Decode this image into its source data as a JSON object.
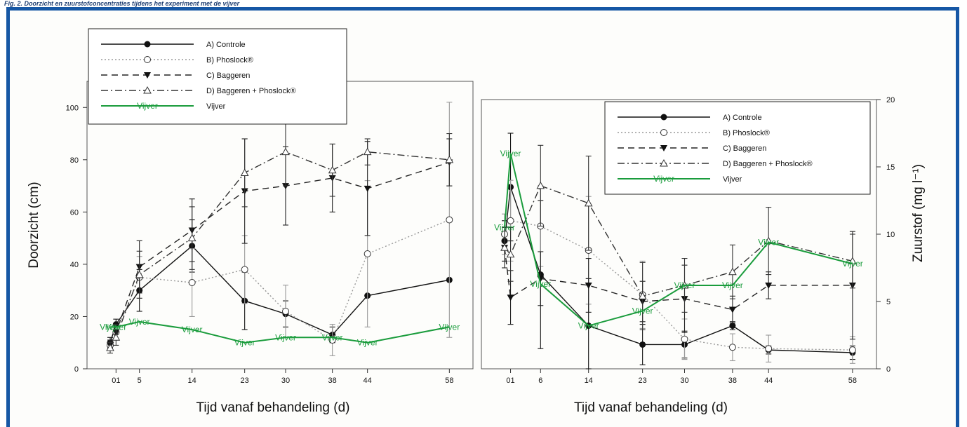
{
  "caption": "Fig. 2. Doorzicht en zuurstofconcentraties tijdens het experiment met de vijver",
  "colors": {
    "frame": "#1657a5",
    "vijver": "#1a9c3c",
    "series_black": "#111111",
    "series_dotted": "#999999",
    "series_dashed": "#222222",
    "series_dashdot": "#333333"
  },
  "chart_data": [
    {
      "type": "line",
      "xlabel": "Tijd vanaf behandeling (d)",
      "ylabel": "Doorzicht (cm)",
      "ylim": [
        0,
        110
      ],
      "yticks": [
        0,
        20,
        40,
        60,
        80,
        100
      ],
      "xticks": [
        "01",
        "5",
        "14",
        "23",
        "30",
        "38",
        "44",
        "58"
      ],
      "legend_position": "top-left",
      "legend": [
        "A) Controle",
        "B) Phoslock®",
        "C) Baggeren",
        "D) Baggeren + Phoslock®",
        "Vijver"
      ],
      "series": [
        {
          "name": "A) Controle",
          "marker": "circle-filled",
          "x": [
            0,
            1,
            5,
            14,
            23,
            30,
            38,
            44,
            58
          ],
          "y": [
            10,
            17,
            30,
            47,
            26,
            21,
            13,
            28,
            34
          ],
          "err": [
            2,
            2,
            8,
            10,
            11,
            5,
            3,
            0,
            0
          ]
        },
        {
          "name": "B) Phoslock®",
          "marker": "circle-open",
          "x": [
            0,
            1,
            5,
            14,
            23,
            30,
            38,
            44,
            58
          ],
          "y": [
            9,
            14,
            35,
            33,
            38,
            22,
            11,
            44,
            57
          ],
          "err": [
            2,
            3,
            8,
            13,
            13,
            10,
            6,
            28,
            45
          ]
        },
        {
          "name": "C) Baggeren",
          "marker": "triangle-down-filled",
          "x": [
            0,
            1,
            5,
            14,
            23,
            30,
            38,
            44,
            58
          ],
          "y": [
            9,
            14,
            39,
            53,
            68,
            70,
            73,
            69,
            79
          ],
          "err": [
            2,
            3,
            10,
            12,
            20,
            15,
            13,
            18,
            9
          ]
        },
        {
          "name": "D) Baggeren + Phoslock®",
          "marker": "triangle-up-open",
          "x": [
            0,
            1,
            5,
            14,
            23,
            30,
            38,
            44,
            58
          ],
          "y": [
            8,
            12,
            36,
            50,
            75,
            83,
            76,
            83,
            80
          ],
          "err": [
            2,
            3,
            9,
            12,
            13,
            13,
            10,
            5,
            10
          ]
        },
        {
          "name": "Vijver",
          "marker": "text",
          "x": [
            0,
            1,
            5,
            14,
            23,
            30,
            38,
            44,
            58
          ],
          "y": [
            16,
            16,
            18,
            15,
            10,
            12,
            12,
            10,
            16
          ]
        }
      ]
    },
    {
      "type": "line",
      "xlabel": "Tijd vanaf behandeling (d)",
      "ylabel": "Zuurstof (mg l⁻¹)",
      "ylim": [
        0,
        20
      ],
      "yticks": [
        0,
        5,
        10,
        15,
        20
      ],
      "xticks": [
        "01",
        "6",
        "14",
        "23",
        "30",
        "38",
        "44",
        "58"
      ],
      "legend_position": "top-right",
      "legend": [
        "A) Controle",
        "B) Phoslock®",
        "C) Baggeren",
        "D) Baggeren + Phoslock®",
        "Vijver"
      ],
      "series": [
        {
          "name": "A) Controle",
          "marker": "circle-filled",
          "x": [
            0,
            1,
            6,
            14,
            23,
            30,
            38,
            44,
            58
          ],
          "y": [
            9.5,
            13.5,
            7.0,
            3.2,
            1.8,
            1.8,
            3.2,
            1.4,
            1.2
          ],
          "err": [
            1.5,
            4,
            5.5,
            3.5,
            1.5,
            1,
            0.3,
            0.3,
            0.5
          ]
        },
        {
          "name": "B) Phoslock®",
          "marker": "circle-open",
          "x": [
            0,
            1,
            6,
            14,
            23,
            30,
            38,
            44,
            58
          ],
          "y": [
            10.0,
            11.0,
            10.6,
            8.8,
            5.5,
            2.2,
            1.6,
            1.5,
            1.4
          ],
          "err": [
            1.5,
            3,
            3,
            4,
            2.5,
            1.5,
            1,
            1,
            1
          ]
        },
        {
          "name": "C) Baggeren",
          "marker": "triangle-down-filled",
          "x": [
            0,
            1,
            6,
            14,
            23,
            30,
            38,
            44,
            58
          ],
          "y": [
            9.0,
            5.3,
            6.7,
            6.2,
            5.0,
            5.2,
            4.4,
            6.2,
            6.2
          ],
          "err": [
            1.5,
            2,
            2,
            2,
            1.5,
            2.5,
            1,
            1,
            4
          ]
        },
        {
          "name": "D) Baggeren + Phoslock®",
          "marker": "triangle-up-open",
          "x": [
            0,
            1,
            6,
            14,
            23,
            30,
            38,
            44,
            58
          ],
          "y": [
            9.0,
            8.5,
            13.6,
            12.3,
            5.4,
            6.2,
            7.2,
            9.5,
            8.0
          ],
          "err": [
            1.5,
            2,
            3,
            3.5,
            2.5,
            2,
            2,
            2.5,
            2
          ]
        },
        {
          "name": "Vijver",
          "marker": "text",
          "x": [
            0,
            1,
            6,
            14,
            23,
            30,
            38,
            44,
            58
          ],
          "y": [
            10.5,
            16.0,
            6.3,
            3.2,
            4.3,
            6.2,
            6.2,
            9.4,
            7.8
          ]
        }
      ]
    }
  ]
}
